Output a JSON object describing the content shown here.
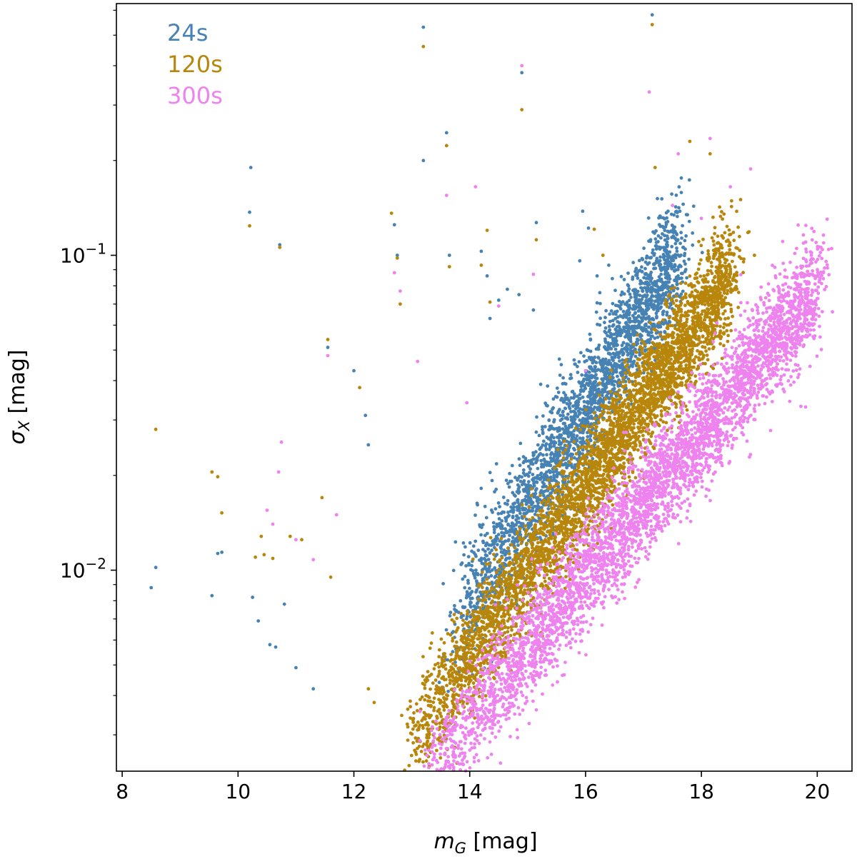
{
  "chart_data": {
    "type": "scatter",
    "xlabel": "m_G [mag]",
    "ylabel": "σ_X [mag]",
    "xlim": [
      7.9,
      20.6
    ],
    "ylim": [
      0.0023,
      0.63
    ],
    "y_scale": "log",
    "grid": false,
    "legend_placement": "top-left",
    "x_ticks": [
      8,
      10,
      12,
      14,
      16,
      18,
      20
    ],
    "y_ticks": [
      {
        "value": 0.01,
        "base": "10",
        "exp": "−2"
      },
      {
        "value": 0.1,
        "base": "10",
        "exp": "−1"
      }
    ],
    "series": [
      {
        "name": "24s",
        "color": "#4682b4",
        "core": {
          "x_min": 13.8,
          "x_max": 17.6,
          "y_at_14": 0.0082,
          "slope_dex_per_mag": 0.3,
          "scatter_dex": 0.1,
          "count": 2600
        },
        "outliers": [
          [
            8.5,
            0.0088
          ],
          [
            8.58,
            0.0102
          ],
          [
            9.55,
            0.0083
          ],
          [
            9.65,
            0.0113
          ],
          [
            9.72,
            0.0114
          ],
          [
            10.2,
            0.137
          ],
          [
            10.22,
            0.19
          ],
          [
            10.72,
            0.108
          ],
          [
            10.25,
            0.0082
          ],
          [
            10.35,
            0.0069
          ],
          [
            10.55,
            0.0058
          ],
          [
            10.65,
            0.0057
          ],
          [
            10.8,
            0.0078
          ],
          [
            11.0,
            0.0049
          ],
          [
            11.3,
            0.0042
          ],
          [
            11.55,
            0.051
          ],
          [
            12.0,
            0.043
          ],
          [
            12.2,
            0.031
          ],
          [
            12.25,
            0.025
          ],
          [
            12.7,
            0.125
          ],
          [
            12.75,
            0.1
          ],
          [
            13.2,
            0.53
          ],
          [
            13.2,
            0.2
          ],
          [
            13.6,
            0.245
          ],
          [
            13.65,
            0.1
          ],
          [
            14.2,
            0.103
          ],
          [
            14.3,
            0.086
          ],
          [
            14.35,
            0.063
          ],
          [
            14.9,
            0.38
          ],
          [
            15.15,
            0.127
          ],
          [
            15.1,
            0.067
          ],
          [
            15.95,
            0.138
          ],
          [
            16.05,
            0.122
          ],
          [
            16.4,
            0.093
          ],
          [
            17.15,
            0.58
          ],
          [
            15.9,
            0.096
          ],
          [
            16.2,
            0.086
          ],
          [
            14.5,
            0.072
          ],
          [
            14.65,
            0.078
          ],
          [
            14.85,
            0.075
          ]
        ]
      },
      {
        "name": "120s",
        "color": "#b8860b",
        "core": {
          "x_min": 13.0,
          "x_max": 18.5,
          "y_at_14": 0.0053,
          "slope_dex_per_mag": 0.27,
          "scatter_dex": 0.09,
          "count": 4200
        },
        "outliers": [
          [
            8.58,
            0.028
          ],
          [
            9.55,
            0.0205
          ],
          [
            9.65,
            0.0198
          ],
          [
            9.72,
            0.0152
          ],
          [
            10.2,
            0.124
          ],
          [
            10.72,
            0.106
          ],
          [
            10.4,
            0.0128
          ],
          [
            10.3,
            0.011
          ],
          [
            10.45,
            0.0112
          ],
          [
            10.6,
            0.0109
          ],
          [
            10.9,
            0.0128
          ],
          [
            11.1,
            0.0125
          ],
          [
            11.45,
            0.017
          ],
          [
            11.55,
            0.054
          ],
          [
            11.6,
            0.0095
          ],
          [
            12.1,
            0.038
          ],
          [
            12.65,
            0.136
          ],
          [
            12.75,
            0.098
          ],
          [
            12.8,
            0.07
          ],
          [
            13.2,
            0.46
          ],
          [
            13.6,
            0.223
          ],
          [
            13.65,
            0.092
          ],
          [
            14.2,
            0.093
          ],
          [
            14.3,
            0.12
          ],
          [
            14.35,
            0.071
          ],
          [
            14.9,
            0.29
          ],
          [
            15.15,
            0.112
          ],
          [
            16.15,
            0.121
          ],
          [
            16.3,
            0.1
          ],
          [
            17.2,
            0.19
          ],
          [
            17.15,
            0.54
          ],
          [
            18.15,
            0.21
          ],
          [
            18.2,
            0.132
          ],
          [
            18.1,
            0.097
          ],
          [
            17.8,
            0.23
          ],
          [
            13.05,
            0.0032
          ],
          [
            13.6,
            0.0034
          ],
          [
            12.35,
            0.0038
          ],
          [
            12.25,
            0.0042
          ]
        ]
      },
      {
        "name": "300s",
        "color": "#ee82ee",
        "core": {
          "x_min": 13.2,
          "x_max": 20.0,
          "y_at_14": 0.0033,
          "slope_dex_per_mag": 0.23,
          "scatter_dex": 0.09,
          "count": 4200
        },
        "outliers": [
          [
            10.5,
            0.0155
          ],
          [
            10.6,
            0.014
          ],
          [
            10.7,
            0.0205
          ],
          [
            10.75,
            0.0255
          ],
          [
            11.0,
            0.0125
          ],
          [
            11.3,
            0.0108
          ],
          [
            11.55,
            0.048
          ],
          [
            11.7,
            0.015
          ],
          [
            12.7,
            0.088
          ],
          [
            12.8,
            0.077
          ],
          [
            13.1,
            0.046
          ],
          [
            13.6,
            0.155
          ],
          [
            13.95,
            0.034
          ],
          [
            14.1,
            0.165
          ],
          [
            14.5,
            0.069
          ],
          [
            14.9,
            0.4
          ],
          [
            15.1,
            0.087
          ],
          [
            16.0,
            0.043
          ],
          [
            17.1,
            0.33
          ],
          [
            17.6,
            0.21
          ],
          [
            18.15,
            0.235
          ],
          [
            18.5,
            0.165
          ],
          [
            18.85,
            0.188
          ],
          [
            17.5,
            0.144
          ],
          [
            18.0,
            0.131
          ],
          [
            19.8,
            0.033
          ],
          [
            20.05,
            0.055
          ],
          [
            14.75,
            0.0037
          ],
          [
            15.15,
            0.0036
          ]
        ]
      }
    ]
  }
}
